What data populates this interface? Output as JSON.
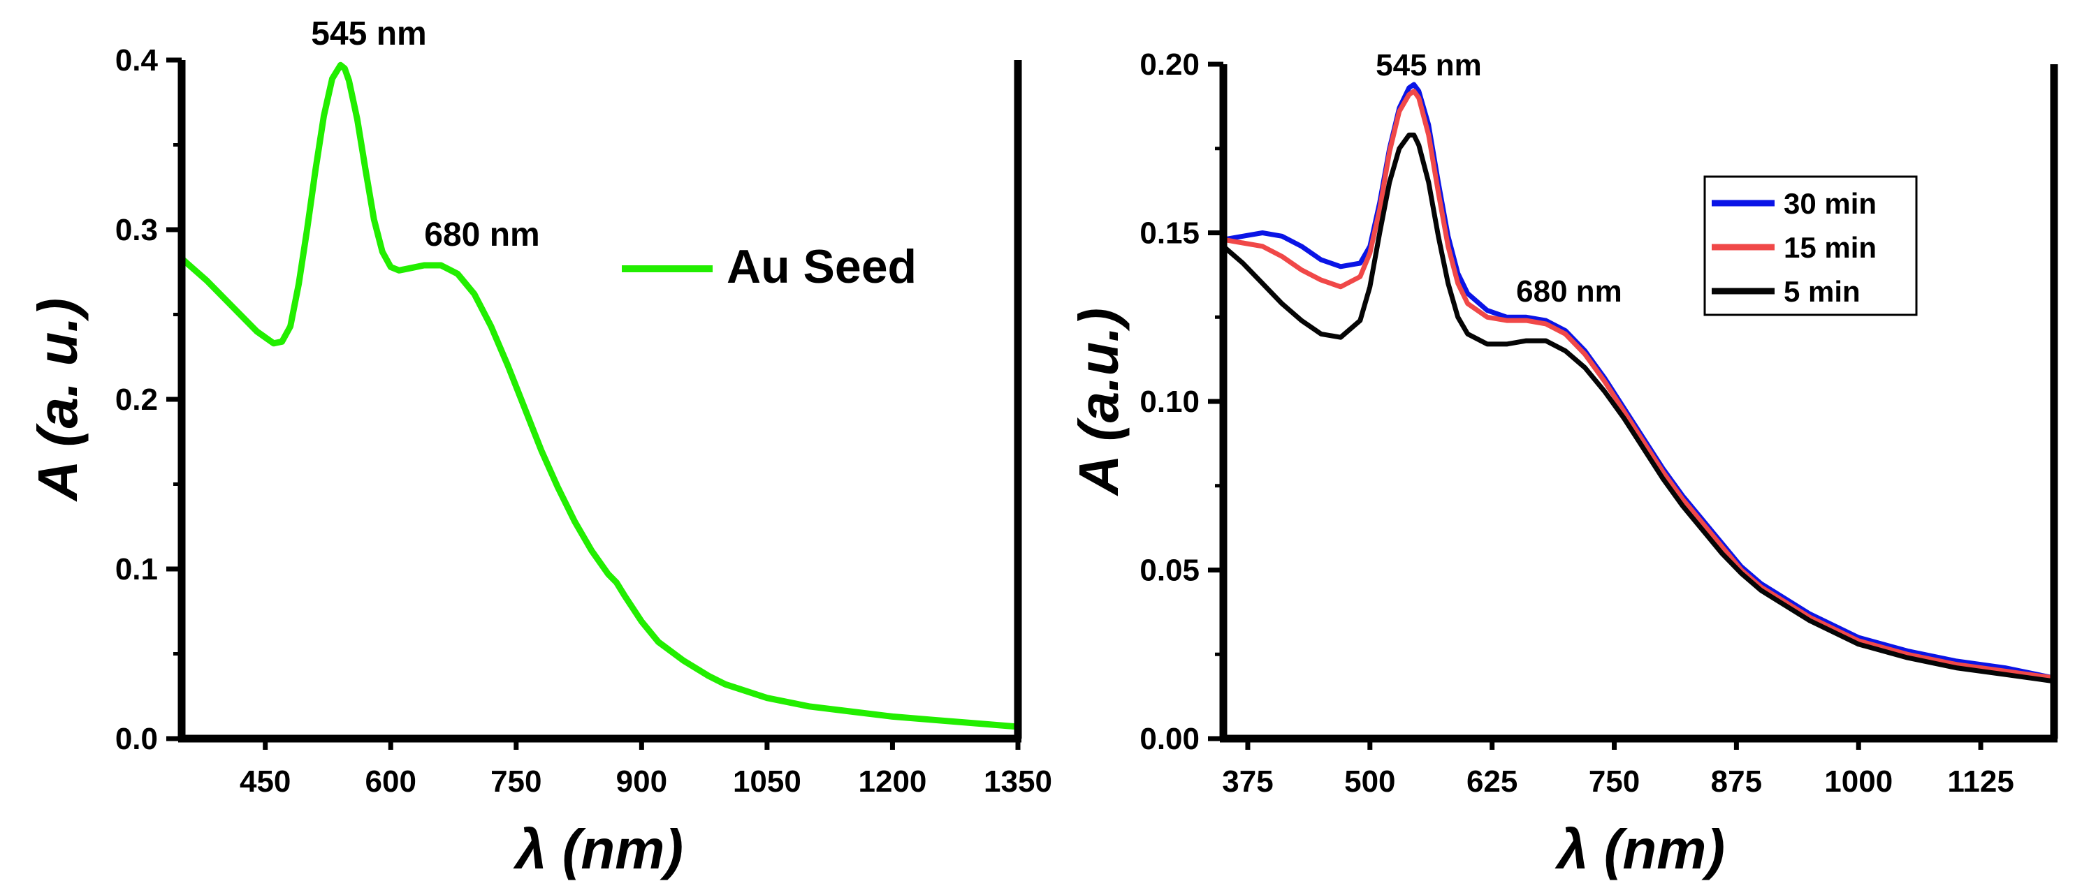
{
  "chart_data": [
    {
      "type": "line",
      "title": "",
      "xlabel": "λ (nm)",
      "ylabel": "A (a. u.)",
      "xlim": [
        350,
        1350
      ],
      "ylim": [
        0,
        0.4
      ],
      "x_ticks": [
        450,
        600,
        750,
        900,
        1050,
        1200,
        1350
      ],
      "y_ticks": [
        0.0,
        0.1,
        0.2,
        0.3,
        0.4
      ],
      "y_tick_decimals": 1,
      "legend": {
        "placement": "top-right"
      },
      "annotations": [
        {
          "text": "545 nm",
          "x": 545,
          "y": 0.395
        },
        {
          "text": "680 nm",
          "x": 680,
          "y": 0.28
        }
      ],
      "series": [
        {
          "name": "Au Seed",
          "color": "#22ee00",
          "x": [
            350,
            380,
            410,
            440,
            460,
            470,
            480,
            490,
            500,
            510,
            520,
            530,
            540,
            545,
            550,
            560,
            570,
            580,
            590,
            600,
            610,
            620,
            640,
            660,
            680,
            700,
            720,
            740,
            760,
            780,
            800,
            820,
            840,
            860,
            870,
            880,
            900,
            920,
            950,
            980,
            1000,
            1050,
            1100,
            1150,
            1200,
            1250,
            1300,
            1350
          ],
          "values": [
            0.283,
            0.27,
            0.255,
            0.24,
            0.233,
            0.234,
            0.243,
            0.268,
            0.3,
            0.335,
            0.367,
            0.389,
            0.397,
            0.395,
            0.388,
            0.365,
            0.335,
            0.306,
            0.287,
            0.278,
            0.276,
            0.277,
            0.279,
            0.279,
            0.274,
            0.262,
            0.243,
            0.22,
            0.195,
            0.17,
            0.148,
            0.128,
            0.111,
            0.097,
            0.092,
            0.084,
            0.069,
            0.057,
            0.046,
            0.037,
            0.032,
            0.024,
            0.019,
            0.016,
            0.013,
            0.011,
            0.009,
            0.007
          ]
        }
      ]
    },
    {
      "type": "line",
      "title": "",
      "xlabel": "λ (nm)",
      "ylabel": "A (a.u.)",
      "xlim": [
        350,
        1200
      ],
      "ylim": [
        0,
        0.2
      ],
      "x_ticks": [
        375,
        500,
        625,
        750,
        875,
        1000,
        1125
      ],
      "y_ticks": [
        0.0,
        0.05,
        0.1,
        0.15,
        0.2
      ],
      "y_tick_decimals": 2,
      "legend": {
        "placement": "top-right"
      },
      "annotations": [
        {
          "text": "545 nm",
          "x": 545,
          "y": 0.196
        },
        {
          "text": "680 nm",
          "x": 680,
          "y": 0.127
        }
      ],
      "series": [
        {
          "name": "30 min",
          "color": "#0a14e6",
          "x": [
            350,
            370,
            390,
            410,
            430,
            450,
            470,
            490,
            500,
            510,
            520,
            530,
            540,
            545,
            550,
            560,
            570,
            580,
            590,
            600,
            620,
            640,
            660,
            680,
            700,
            720,
            740,
            760,
            780,
            800,
            820,
            840,
            860,
            880,
            900,
            950,
            1000,
            1050,
            1100,
            1150,
            1200
          ],
          "values": [
            0.148,
            0.149,
            0.15,
            0.149,
            0.146,
            0.142,
            0.14,
            0.141,
            0.146,
            0.159,
            0.175,
            0.187,
            0.193,
            0.194,
            0.192,
            0.182,
            0.165,
            0.149,
            0.138,
            0.132,
            0.127,
            0.125,
            0.125,
            0.124,
            0.121,
            0.115,
            0.107,
            0.098,
            0.089,
            0.08,
            0.072,
            0.065,
            0.058,
            0.051,
            0.046,
            0.037,
            0.03,
            0.026,
            0.023,
            0.021,
            0.018
          ]
        },
        {
          "name": "15 min",
          "color": "#f04848",
          "x": [
            350,
            370,
            390,
            410,
            430,
            450,
            470,
            490,
            500,
            510,
            520,
            530,
            540,
            545,
            550,
            560,
            570,
            580,
            590,
            600,
            620,
            640,
            660,
            680,
            700,
            720,
            740,
            760,
            780,
            800,
            820,
            840,
            860,
            880,
            900,
            950,
            1000,
            1050,
            1100,
            1150,
            1200
          ],
          "values": [
            0.148,
            0.147,
            0.146,
            0.143,
            0.139,
            0.136,
            0.134,
            0.137,
            0.144,
            0.157,
            0.174,
            0.186,
            0.191,
            0.192,
            0.19,
            0.179,
            0.162,
            0.146,
            0.135,
            0.129,
            0.125,
            0.124,
            0.124,
            0.123,
            0.12,
            0.114,
            0.106,
            0.097,
            0.088,
            0.079,
            0.071,
            0.064,
            0.057,
            0.05,
            0.045,
            0.036,
            0.029,
            0.025,
            0.022,
            0.02,
            0.018
          ]
        },
        {
          "name": "5 min",
          "color": "#050505",
          "x": [
            350,
            370,
            390,
            410,
            430,
            450,
            470,
            490,
            500,
            510,
            520,
            530,
            540,
            545,
            550,
            560,
            570,
            580,
            590,
            600,
            620,
            640,
            660,
            680,
            700,
            720,
            740,
            760,
            780,
            800,
            820,
            840,
            860,
            880,
            900,
            950,
            1000,
            1050,
            1100,
            1150,
            1200
          ],
          "values": [
            0.146,
            0.141,
            0.135,
            0.129,
            0.124,
            0.12,
            0.119,
            0.124,
            0.134,
            0.15,
            0.165,
            0.175,
            0.179,
            0.179,
            0.176,
            0.165,
            0.149,
            0.135,
            0.125,
            0.12,
            0.117,
            0.117,
            0.118,
            0.118,
            0.115,
            0.11,
            0.103,
            0.095,
            0.086,
            0.077,
            0.069,
            0.062,
            0.055,
            0.049,
            0.044,
            0.035,
            0.028,
            0.024,
            0.021,
            0.019,
            0.017
          ]
        }
      ]
    }
  ]
}
